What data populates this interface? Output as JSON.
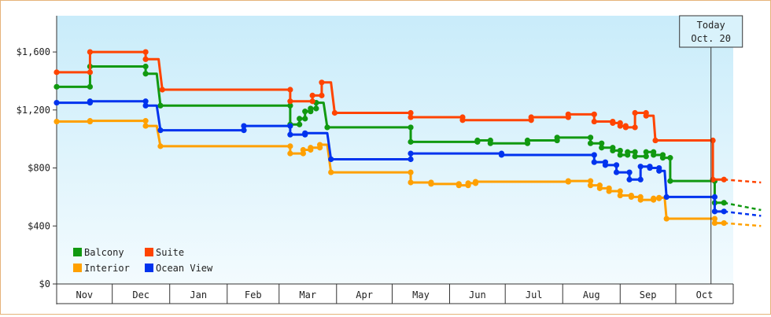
{
  "chart_data": {
    "type": "line",
    "step": true,
    "title": "",
    "xlabel": "",
    "ylabel": "",
    "ylim": [
      0,
      1850
    ],
    "xlim": [
      0,
      365
    ],
    "y_ticks": [
      {
        "value": 0,
        "label": "$0"
      },
      {
        "value": 400,
        "label": "$400"
      },
      {
        "value": 800,
        "label": "$800"
      },
      {
        "value": 1200,
        "label": "$1,200"
      },
      {
        "value": 1600,
        "label": "$1,600"
      }
    ],
    "months": [
      {
        "label": "Nov",
        "start": 0,
        "end": 30
      },
      {
        "label": "Dec",
        "start": 30,
        "end": 61
      },
      {
        "label": "Jan",
        "start": 61,
        "end": 92
      },
      {
        "label": "Feb",
        "start": 92,
        "end": 120
      },
      {
        "label": "Mar",
        "start": 120,
        "end": 151
      },
      {
        "label": "Apr",
        "start": 151,
        "end": 181
      },
      {
        "label": "May",
        "start": 181,
        "end": 212
      },
      {
        "label": "Jun",
        "start": 212,
        "end": 242
      },
      {
        "label": "Jul",
        "start": 242,
        "end": 273
      },
      {
        "label": "Aug",
        "start": 273,
        "end": 304
      },
      {
        "label": "Sep",
        "start": 304,
        "end": 334
      },
      {
        "label": "Oct",
        "start": 334,
        "end": 365
      }
    ],
    "today": {
      "x": 353,
      "line1": "Today",
      "line2": "Oct. 20"
    },
    "legend": {
      "placement": "bottom-left"
    },
    "grid": false,
    "series": [
      {
        "name": "Balcony",
        "color": "#119911",
        "points": [
          [
            0,
            1360
          ],
          [
            18,
            1360
          ],
          [
            18,
            1500
          ],
          [
            48,
            1500
          ],
          [
            48,
            1450
          ],
          [
            54,
            1450
          ],
          [
            56,
            1230
          ],
          [
            126,
            1230
          ],
          [
            126,
            1100
          ],
          [
            131,
            1100
          ],
          [
            131,
            1140
          ],
          [
            134,
            1140
          ],
          [
            134,
            1190
          ],
          [
            137,
            1190
          ],
          [
            137,
            1210
          ],
          [
            140,
            1210
          ],
          [
            140,
            1250
          ],
          [
            144,
            1250
          ],
          [
            146,
            1080
          ],
          [
            191,
            1080
          ],
          [
            191,
            980
          ],
          [
            218,
            980
          ],
          [
            218,
            980
          ],
          [
            227,
            980
          ],
          [
            227,
            990
          ],
          [
            234,
            990
          ],
          [
            234,
            970
          ],
          [
            254,
            970
          ],
          [
            254,
            990
          ],
          [
            270,
            990
          ],
          [
            270,
            1010
          ],
          [
            288,
            1010
          ],
          [
            288,
            970
          ],
          [
            294,
            970
          ],
          [
            294,
            940
          ],
          [
            300,
            940
          ],
          [
            300,
            920
          ],
          [
            304,
            920
          ],
          [
            304,
            890
          ],
          [
            308,
            890
          ],
          [
            308,
            910
          ],
          [
            312,
            910
          ],
          [
            312,
            880
          ],
          [
            318,
            880
          ],
          [
            318,
            910
          ],
          [
            322,
            910
          ],
          [
            322,
            890
          ],
          [
            327,
            890
          ],
          [
            327,
            870
          ],
          [
            331,
            870
          ],
          [
            331,
            710
          ],
          [
            355,
            710
          ],
          [
            355,
            560
          ],
          [
            360,
            560
          ]
        ],
        "forecast": [
          [
            360,
            560
          ],
          [
            380,
            510
          ]
        ]
      },
      {
        "name": "Suite",
        "color": "#ff4400",
        "points": [
          [
            0,
            1460
          ],
          [
            18,
            1460
          ],
          [
            18,
            1600
          ],
          [
            48,
            1600
          ],
          [
            48,
            1550
          ],
          [
            55,
            1550
          ],
          [
            57,
            1340
          ],
          [
            126,
            1340
          ],
          [
            126,
            1260
          ],
          [
            138,
            1260
          ],
          [
            138,
            1300
          ],
          [
            143,
            1300
          ],
          [
            143,
            1390
          ],
          [
            148,
            1390
          ],
          [
            150,
            1180
          ],
          [
            191,
            1180
          ],
          [
            191,
            1150
          ],
          [
            219,
            1150
          ],
          [
            219,
            1130
          ],
          [
            256,
            1130
          ],
          [
            256,
            1150
          ],
          [
            276,
            1150
          ],
          [
            276,
            1170
          ],
          [
            290,
            1170
          ],
          [
            290,
            1120
          ],
          [
            300,
            1120
          ],
          [
            300,
            1110
          ],
          [
            304,
            1110
          ],
          [
            304,
            1090
          ],
          [
            307,
            1090
          ],
          [
            307,
            1080
          ],
          [
            312,
            1080
          ],
          [
            312,
            1180
          ],
          [
            318,
            1180
          ],
          [
            318,
            1160
          ],
          [
            322,
            1160
          ],
          [
            323,
            990
          ],
          [
            354,
            990
          ],
          [
            354,
            720
          ],
          [
            360,
            720
          ]
        ],
        "forecast": [
          [
            360,
            720
          ],
          [
            380,
            700
          ]
        ]
      },
      {
        "name": "Interior",
        "color": "#ffa000",
        "points": [
          [
            0,
            1120
          ],
          [
            18,
            1120
          ],
          [
            18,
            1125
          ],
          [
            48,
            1125
          ],
          [
            48,
            1090
          ],
          [
            54,
            1090
          ],
          [
            56,
            950
          ],
          [
            126,
            950
          ],
          [
            126,
            900
          ],
          [
            133,
            900
          ],
          [
            133,
            925
          ],
          [
            137,
            925
          ],
          [
            137,
            940
          ],
          [
            142,
            940
          ],
          [
            142,
            960
          ],
          [
            146,
            960
          ],
          [
            148,
            770
          ],
          [
            191,
            770
          ],
          [
            191,
            700
          ],
          [
            202,
            700
          ],
          [
            202,
            690
          ],
          [
            217,
            690
          ],
          [
            217,
            680
          ],
          [
            222,
            680
          ],
          [
            222,
            695
          ],
          [
            226,
            695
          ],
          [
            226,
            705
          ],
          [
            276,
            705
          ],
          [
            276,
            710
          ],
          [
            288,
            710
          ],
          [
            288,
            680
          ],
          [
            293,
            680
          ],
          [
            293,
            660
          ],
          [
            298,
            660
          ],
          [
            298,
            640
          ],
          [
            304,
            640
          ],
          [
            304,
            610
          ],
          [
            310,
            610
          ],
          [
            310,
            600
          ],
          [
            315,
            600
          ],
          [
            315,
            580
          ],
          [
            322,
            580
          ],
          [
            322,
            590
          ],
          [
            325,
            590
          ],
          [
            325,
            595
          ],
          [
            328,
            595
          ],
          [
            329,
            450
          ],
          [
            355,
            450
          ],
          [
            355,
            420
          ],
          [
            360,
            420
          ]
        ],
        "forecast": [
          [
            360,
            420
          ],
          [
            380,
            400
          ]
        ]
      },
      {
        "name": "Ocean View",
        "color": "#0033ee",
        "points": [
          [
            0,
            1250
          ],
          [
            18,
            1250
          ],
          [
            18,
            1260
          ],
          [
            48,
            1260
          ],
          [
            48,
            1230
          ],
          [
            54,
            1230
          ],
          [
            56,
            1060
          ],
          [
            101,
            1060
          ],
          [
            101,
            1090
          ],
          [
            126,
            1090
          ],
          [
            126,
            1030
          ],
          [
            134,
            1030
          ],
          [
            134,
            1040
          ],
          [
            146,
            1040
          ],
          [
            148,
            860
          ],
          [
            191,
            860
          ],
          [
            191,
            900
          ],
          [
            240,
            900
          ],
          [
            240,
            890
          ],
          [
            278,
            890
          ],
          [
            278,
            890
          ],
          [
            290,
            890
          ],
          [
            290,
            840
          ],
          [
            296,
            840
          ],
          [
            296,
            820
          ],
          [
            302,
            820
          ],
          [
            302,
            770
          ],
          [
            309,
            770
          ],
          [
            309,
            720
          ],
          [
            315,
            720
          ],
          [
            315,
            810
          ],
          [
            320,
            810
          ],
          [
            320,
            800
          ],
          [
            325,
            800
          ],
          [
            325,
            780
          ],
          [
            328,
            780
          ],
          [
            329,
            600
          ],
          [
            355,
            600
          ],
          [
            355,
            500
          ],
          [
            360,
            500
          ]
        ],
        "forecast": [
          [
            360,
            500
          ],
          [
            380,
            470
          ]
        ]
      }
    ],
    "legend_order": [
      "Balcony",
      "Suite",
      "Interior",
      "Ocean View"
    ]
  }
}
